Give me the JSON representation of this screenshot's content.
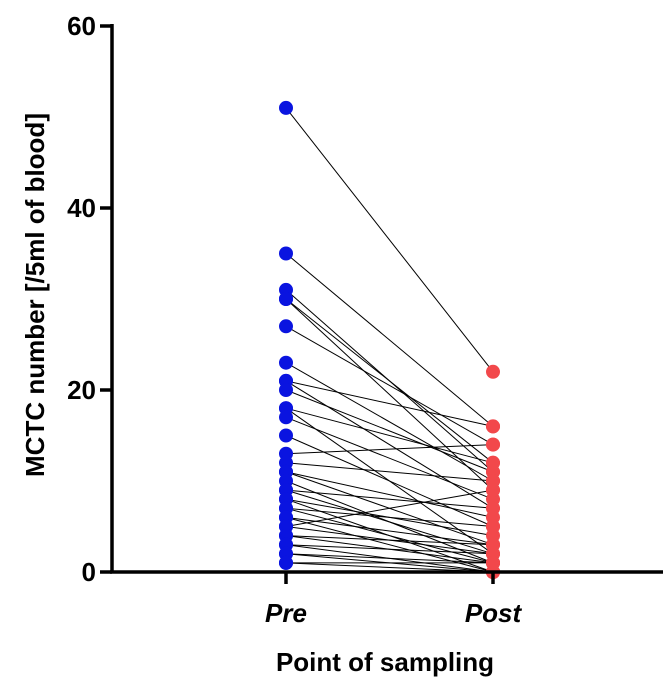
{
  "chart_data": {
    "type": "scatter",
    "subtype": "paired-before-after",
    "title": "",
    "xlabel": "Point of sampling",
    "ylabel": "MCTC number [/5ml of blood]",
    "categories": [
      "Pre",
      "Post"
    ],
    "ylim": [
      0,
      60
    ],
    "yticks": [
      "0",
      "20",
      "40",
      "60"
    ],
    "grid": false,
    "legend": "none",
    "colors": {
      "pre": "#0a14e0",
      "post": "#f2484b",
      "line": "#000000",
      "axis": "#000000"
    },
    "pairs": [
      {
        "pre": 51,
        "post": 22
      },
      {
        "pre": 35,
        "post": 16
      },
      {
        "pre": 31,
        "post": 11
      },
      {
        "pre": 30,
        "post": 12
      },
      {
        "pre": 30,
        "post": 9
      },
      {
        "pre": 27,
        "post": 14
      },
      {
        "pre": 23,
        "post": 10
      },
      {
        "pre": 21,
        "post": 16
      },
      {
        "pre": 21,
        "post": 7
      },
      {
        "pre": 20,
        "post": 11
      },
      {
        "pre": 18,
        "post": 12
      },
      {
        "pre": 18,
        "post": 2
      },
      {
        "pre": 17,
        "post": 8
      },
      {
        "pre": 15,
        "post": 5
      },
      {
        "pre": 13,
        "post": 14
      },
      {
        "pre": 12,
        "post": 10
      },
      {
        "pre": 11,
        "post": 3
      },
      {
        "pre": 11,
        "post": 6
      },
      {
        "pre": 10,
        "post": 1
      },
      {
        "pre": 9,
        "post": 7
      },
      {
        "pre": 9,
        "post": 2
      },
      {
        "pre": 8,
        "post": 4
      },
      {
        "pre": 8,
        "post": 0
      },
      {
        "pre": 7,
        "post": 5
      },
      {
        "pre": 7,
        "post": 1
      },
      {
        "pre": 6,
        "post": 3
      },
      {
        "pre": 6,
        "post": 0
      },
      {
        "pre": 5,
        "post": 2
      },
      {
        "pre": 5,
        "post": 9
      },
      {
        "pre": 4,
        "post": 1
      },
      {
        "pre": 4,
        "post": 3
      },
      {
        "pre": 3,
        "post": 0
      },
      {
        "pre": 3,
        "post": 2
      },
      {
        "pre": 2,
        "post": 1
      },
      {
        "pre": 2,
        "post": 0
      },
      {
        "pre": 1,
        "post": 0
      },
      {
        "pre": 1,
        "post": 1
      }
    ]
  }
}
